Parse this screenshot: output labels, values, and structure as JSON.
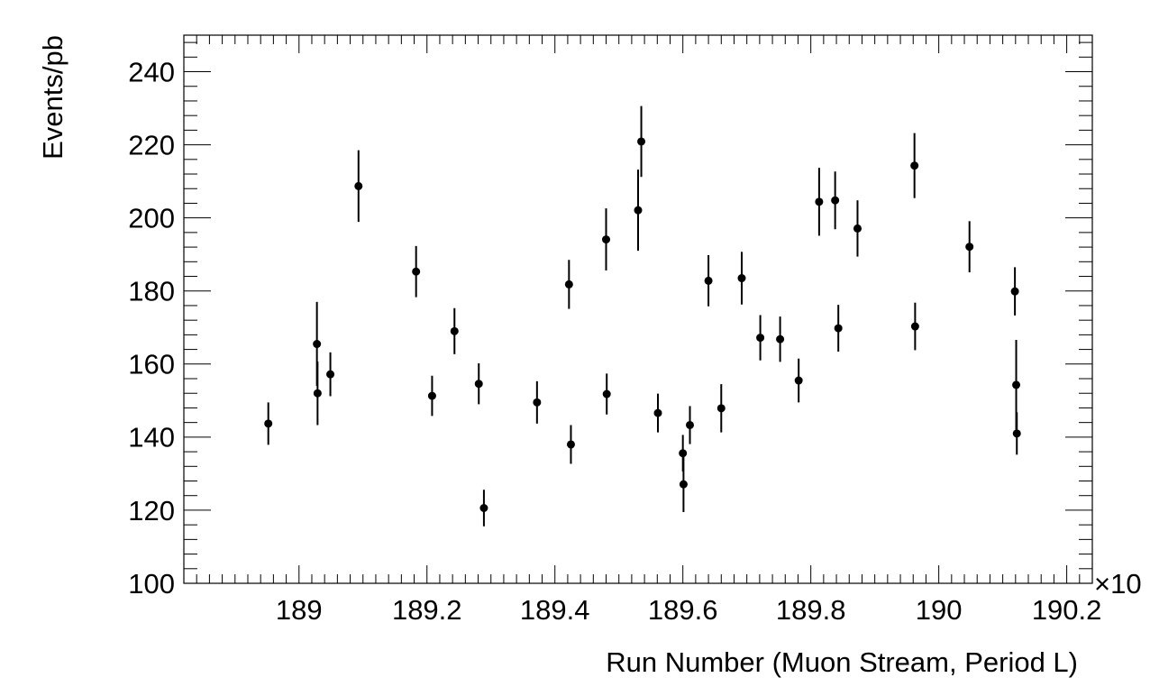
{
  "chart_data": {
    "type": "scatter",
    "title": "",
    "xlabel": "Run Number (Muon Stream, Period L)",
    "ylabel": "Events/pb",
    "x_multiplier_label": "×10",
    "xlim": [
      188.82,
      190.24
    ],
    "ylim": [
      100,
      250
    ],
    "x_ticks": [
      {
        "value": 189.0,
        "label": "189"
      },
      {
        "value": 189.2,
        "label": "189.2"
      },
      {
        "value": 189.4,
        "label": "189.4"
      },
      {
        "value": 189.6,
        "label": "189.6"
      },
      {
        "value": 189.8,
        "label": "189.8"
      },
      {
        "value": 190.0,
        "label": "190"
      },
      {
        "value": 190.2,
        "label": "190.2"
      }
    ],
    "y_ticks": [
      {
        "value": 100,
        "label": "100"
      },
      {
        "value": 120,
        "label": "120"
      },
      {
        "value": 140,
        "label": "140"
      },
      {
        "value": 160,
        "label": "160"
      },
      {
        "value": 180,
        "label": "180"
      },
      {
        "value": 200,
        "label": "200"
      },
      {
        "value": 220,
        "label": "220"
      },
      {
        "value": 240,
        "label": "240"
      }
    ],
    "grid": false,
    "points": [
      {
        "x": 188.952,
        "y": 143.7,
        "err": 5.8
      },
      {
        "x": 189.028,
        "y": 165.5,
        "err": 11.5
      },
      {
        "x": 189.029,
        "y": 152.0,
        "err": 8.7
      },
      {
        "x": 189.049,
        "y": 157.2,
        "err": 6.0
      },
      {
        "x": 189.093,
        "y": 208.7,
        "err": 9.8
      },
      {
        "x": 189.183,
        "y": 185.3,
        "err": 7.0
      },
      {
        "x": 189.208,
        "y": 151.3,
        "err": 5.5
      },
      {
        "x": 189.243,
        "y": 169.0,
        "err": 6.3
      },
      {
        "x": 189.281,
        "y": 154.6,
        "err": 5.6
      },
      {
        "x": 189.289,
        "y": 120.6,
        "err": 5.0
      },
      {
        "x": 189.372,
        "y": 149.5,
        "err": 5.8
      },
      {
        "x": 189.422,
        "y": 181.8,
        "err": 6.7
      },
      {
        "x": 189.425,
        "y": 138.0,
        "err": 5.3
      },
      {
        "x": 189.48,
        "y": 194.1,
        "err": 8.5
      },
      {
        "x": 189.481,
        "y": 151.8,
        "err": 5.6
      },
      {
        "x": 189.53,
        "y": 202.1,
        "err": 11.1
      },
      {
        "x": 189.535,
        "y": 220.9,
        "err": 9.7
      },
      {
        "x": 189.561,
        "y": 146.6,
        "err": 5.3
      },
      {
        "x": 189.6,
        "y": 135.6,
        "err": 5.0
      },
      {
        "x": 189.601,
        "y": 127.1,
        "err": 7.6
      },
      {
        "x": 189.611,
        "y": 143.3,
        "err": 5.2
      },
      {
        "x": 189.64,
        "y": 182.8,
        "err": 7.0
      },
      {
        "x": 189.66,
        "y": 147.9,
        "err": 6.6
      },
      {
        "x": 189.692,
        "y": 183.5,
        "err": 7.2
      },
      {
        "x": 189.721,
        "y": 167.2,
        "err": 6.2
      },
      {
        "x": 189.752,
        "y": 166.8,
        "err": 6.2
      },
      {
        "x": 189.781,
        "y": 155.5,
        "err": 6.0
      },
      {
        "x": 189.813,
        "y": 204.4,
        "err": 9.3
      },
      {
        "x": 189.838,
        "y": 204.8,
        "err": 7.9
      },
      {
        "x": 189.843,
        "y": 169.8,
        "err": 6.4
      },
      {
        "x": 189.873,
        "y": 197.1,
        "err": 7.7
      },
      {
        "x": 189.962,
        "y": 214.3,
        "err": 8.9
      },
      {
        "x": 189.963,
        "y": 170.3,
        "err": 6.5
      },
      {
        "x": 190.048,
        "y": 192.1,
        "err": 7.0
      },
      {
        "x": 190.119,
        "y": 179.9,
        "err": 6.6
      },
      {
        "x": 190.121,
        "y": 154.3,
        "err": 12.3
      },
      {
        "x": 190.122,
        "y": 141.0,
        "err": 5.8
      }
    ]
  }
}
